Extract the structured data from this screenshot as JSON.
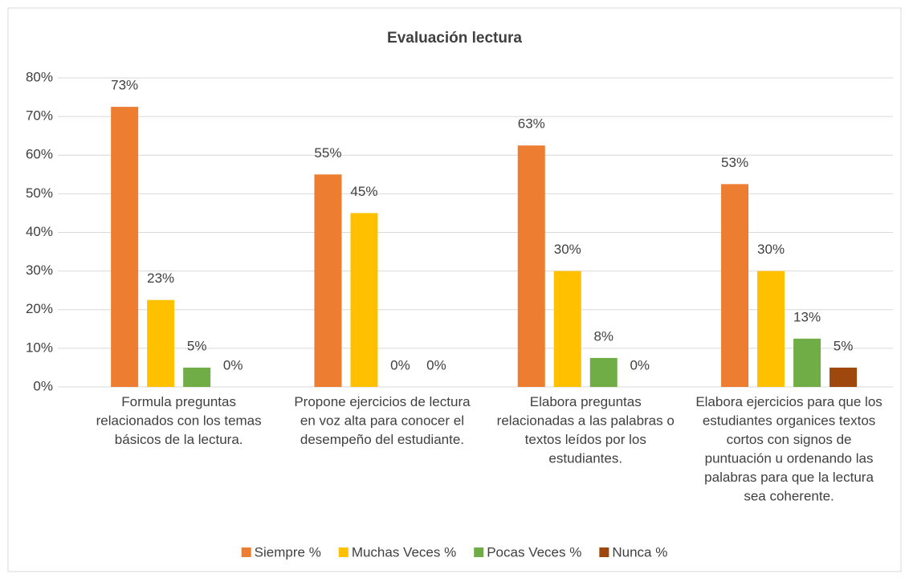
{
  "chart_data": {
    "type": "bar",
    "title": "Evaluación lectura",
    "categories": [
      "Formula preguntas relacionados con los temas básicos de la lectura.",
      "Propone ejercicios de lectura en voz alta para conocer el desempeño del estudiante.",
      "Elabora preguntas relacionadas a las palabras o textos leídos por los estudiantes.",
      "Elabora ejercicios para que los estudiantes organices textos cortos con signos de puntuación u ordenando las palabras para que la lectura sea coherente."
    ],
    "series": [
      {
        "name": "Siempre %",
        "color": "#ED7D31",
        "values": [
          72.5,
          55,
          62.5,
          52.5
        ],
        "value_labels": [
          "73%",
          "55%",
          "63%",
          "53%"
        ]
      },
      {
        "name": "Muchas Veces %",
        "color": "#FFC000",
        "values": [
          22.5,
          45,
          30,
          30
        ],
        "value_labels": [
          "23%",
          "45%",
          "30%",
          "30%"
        ]
      },
      {
        "name": "Pocas Veces %",
        "color": "#70AD47",
        "values": [
          5,
          0,
          7.5,
          12.5
        ],
        "value_labels": [
          "5%",
          "0%",
          "8%",
          "13%"
        ]
      },
      {
        "name": "Nunca %",
        "color": "#9E480E",
        "values": [
          0,
          0,
          0,
          5
        ],
        "value_labels": [
          "0%",
          "0%",
          "0%",
          "5%"
        ]
      }
    ],
    "ylim": [
      0,
      80
    ],
    "yticks": [
      {
        "value": 0,
        "label": "0%"
      },
      {
        "value": 10,
        "label": "10%"
      },
      {
        "value": 20,
        "label": "20%"
      },
      {
        "value": 30,
        "label": "30%"
      },
      {
        "value": 40,
        "label": "40%"
      },
      {
        "value": 50,
        "label": "50%"
      },
      {
        "value": 60,
        "label": "60%"
      },
      {
        "value": 70,
        "label": "70%"
      },
      {
        "value": 80,
        "label": "80%"
      }
    ],
    "grid": true,
    "legend": "bottom"
  }
}
